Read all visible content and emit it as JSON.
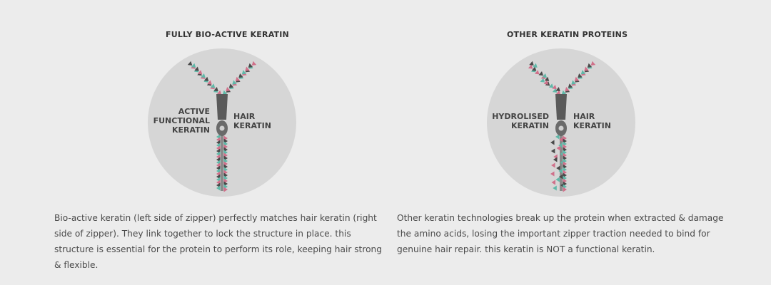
{
  "colors": {
    "background": "#ececec",
    "circle": "#d6d6d6",
    "teal": "#5fb8a8",
    "pink": "#d0708a",
    "dark": "#4a4a4a",
    "zipper_pull": "#5a5a5a"
  },
  "left_panel": {
    "title": "FULLY BIO-ACTIVE KERATIN",
    "label_left": [
      "ACTIVE",
      "FUNCTIONAL",
      "KERATIN"
    ],
    "label_right": [
      "HAIR",
      "KERATIN"
    ],
    "caption": "Bio-active keratin (left side of zipper) perfectly matches hair keratin (right side of zipper). They link together to lock the structure in place. this structure is essential for the protein to perform its role, keeping hair strong & flexible."
  },
  "right_panel": {
    "title": "OTHER KERATIN PROTEINS",
    "label_left": [
      "HYDROLISED",
      "KERATIN"
    ],
    "label_right": [
      "HAIR",
      "KERATIN"
    ],
    "caption": "Other keratin technologies break up the protein when extracted & damage the amino acids, losing the important zipper traction needed to bind for genuine hair repair. this keratin is NOT a functional keratin."
  }
}
